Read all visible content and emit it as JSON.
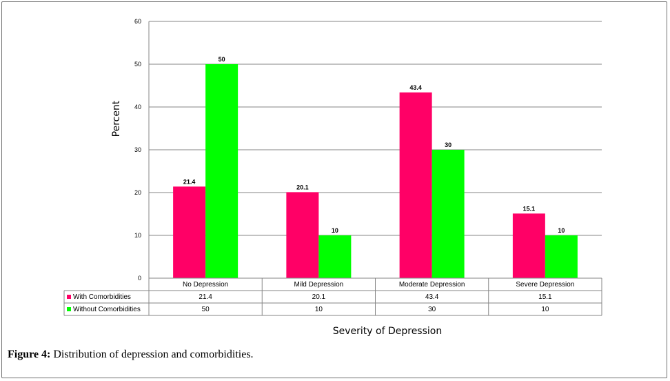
{
  "caption": {
    "label": "Figure 4:",
    "text": " Distribution of depression and comorbidities."
  },
  "chart_data": {
    "type": "bar",
    "categories": [
      "No Depression",
      "Mild Depression",
      "Moderate Depression",
      "Severe Depression"
    ],
    "series": [
      {
        "name": "With Comorbidities",
        "values": [
          21.4,
          20.1,
          43.4,
          15.1
        ],
        "color": "#ff0066"
      },
      {
        "name": "Without Comorbidities",
        "values": [
          50,
          10,
          30,
          10
        ],
        "color": "#00ff00"
      }
    ],
    "xlabel": "Severity of Depression",
    "ylabel": "Percent",
    "ylim": [
      0,
      60
    ],
    "yticks": [
      0,
      10,
      20,
      30,
      40,
      50,
      60
    ],
    "grid": true,
    "legend": "data-table-below"
  }
}
